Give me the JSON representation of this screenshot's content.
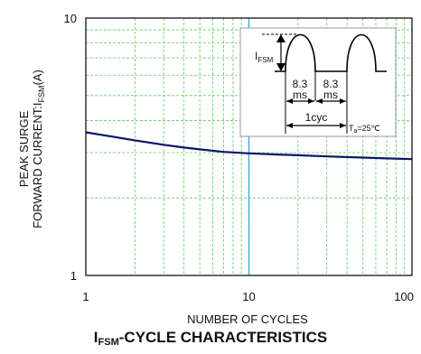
{
  "chart_data": {
    "type": "line",
    "title_main": "I",
    "title_sub": "FSM",
    "title_rest": "-CYCLE CHARACTERISTICS",
    "xlabel": "NUMBER OF CYCLES",
    "ylabel_line1": "PEAK SURGE",
    "ylabel_line2_main": "FORWARD CURRENT:I",
    "ylabel_line2_sub": "FSM",
    "ylabel_line2_end": "(A)",
    "x_scale": "log",
    "y_scale": "log",
    "xlim": [
      1,
      100
    ],
    "ylim": [
      1,
      10
    ],
    "x_tick_labels": [
      "1",
      "10",
      "100"
    ],
    "y_tick_labels": [
      "1",
      "10"
    ],
    "grid": true,
    "series": [
      {
        "color": "#0d1566",
        "points": [
          [
            1,
            3.6
          ],
          [
            1.5,
            3.45
          ],
          [
            2,
            3.35
          ],
          [
            3,
            3.22
          ],
          [
            4,
            3.14
          ],
          [
            5,
            3.09
          ],
          [
            7,
            3.02
          ],
          [
            10,
            2.98
          ],
          [
            15,
            2.95
          ],
          [
            20,
            2.93
          ],
          [
            30,
            2.9
          ],
          [
            50,
            2.87
          ],
          [
            70,
            2.85
          ],
          [
            100,
            2.83
          ]
        ]
      }
    ],
    "highlight_x": 10,
    "inset": {
      "ifsm_main": "I",
      "ifsm_sub": "FSM",
      "period1_top": "8.3",
      "period1_bottom": "ms",
      "period2_top": "8.3",
      "period2_bottom": "ms",
      "cycle_label": "1cyc",
      "ta_main": "T",
      "ta_sub": "a",
      "ta_rest": "=25℃"
    },
    "colors": {
      "grid": "#5ccf5c",
      "axis": "#000000",
      "series": "#0d1566",
      "highlight": "#29b6e6",
      "inset_border": "#999999"
    }
  }
}
